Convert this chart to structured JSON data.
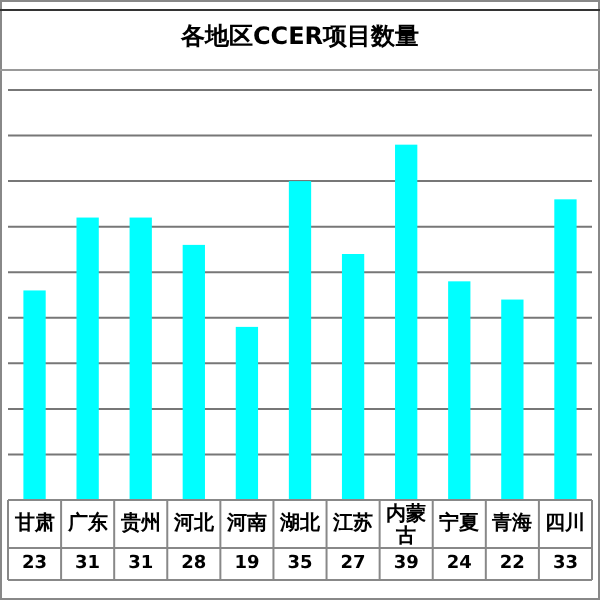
{
  "chart_data": {
    "type": "bar",
    "title": "各地区CCER项目数量",
    "categories": [
      "甘肃",
      "广东",
      "贵州",
      "河北",
      "河南",
      "湖北",
      "江苏",
      "内蒙古",
      "宁夏",
      "青海",
      "四川"
    ],
    "values": [
      23,
      31,
      31,
      28,
      19,
      35,
      27,
      39,
      24,
      22,
      33
    ],
    "color": "#00ffff",
    "data_labels": true,
    "ylim": [
      0,
      45
    ],
    "yticks": [
      {
        "value": 0,
        "label": null
      },
      {
        "value": 5,
        "label": null
      },
      {
        "value": 10,
        "label": null
      },
      {
        "value": 15,
        "label": null
      },
      {
        "value": 20,
        "label": null
      },
      {
        "value": 25,
        "label": null
      },
      {
        "value": 30,
        "label": null
      },
      {
        "value": 35,
        "label": null
      },
      {
        "value": 40,
        "label": null
      },
      {
        "value": 45,
        "label": null
      }
    ],
    "grid": "y"
  }
}
